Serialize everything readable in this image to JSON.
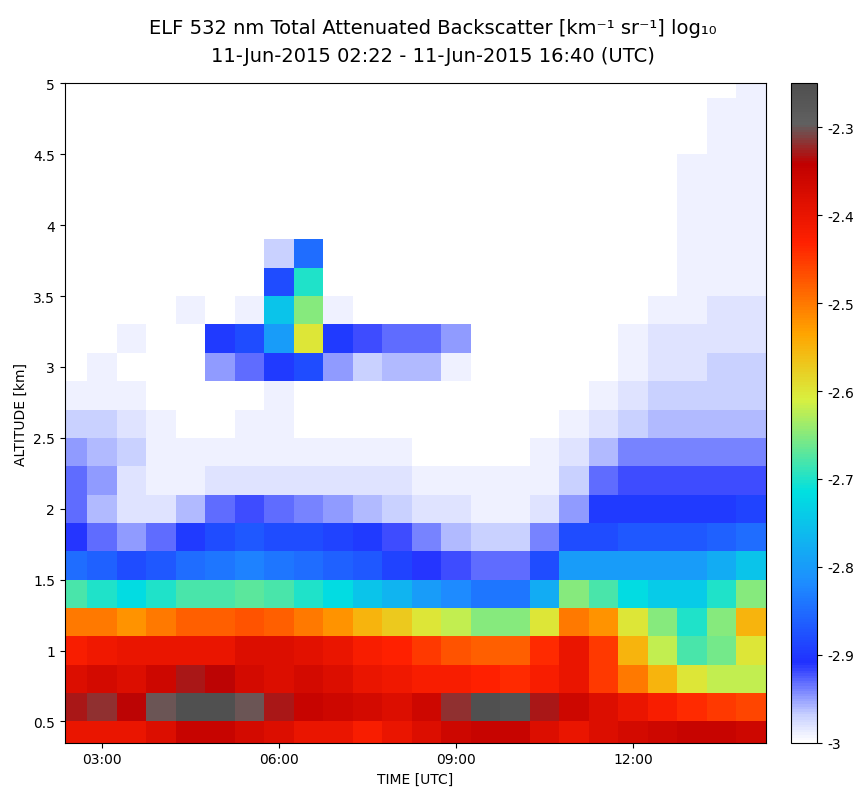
{
  "chart_data": {
    "type": "heatmap",
    "title": "ELF 532 nm Total Attenuated Backscatter [km⁻¹ sr⁻¹] log₁₀",
    "subtitle": "11-Jun-2015 02:22 - 11-Jun-2015 16:40 (UTC)",
    "x_label": "TIME [UTC]",
    "y_label": "ALTITUDE [km]",
    "xlim": [
      2.37,
      14.25
    ],
    "ylim": [
      0.35,
      5
    ],
    "xticks": [
      {
        "value": 3,
        "label": "03:00"
      },
      {
        "value": 6,
        "label": "06:00"
      },
      {
        "value": 9,
        "label": "09:00"
      },
      {
        "value": 12,
        "label": "12:00"
      }
    ],
    "yticks": [
      0.5,
      1,
      1.5,
      2,
      2.5,
      3,
      3.5,
      4,
      4.5,
      5
    ],
    "x": [
      2.5,
      3,
      3.5,
      4,
      4.5,
      5,
      5.5,
      6,
      6.5,
      7,
      7.5,
      8,
      8.5,
      9,
      9.5,
      10,
      10.5,
      11,
      11.5,
      12,
      12.5,
      13,
      13.5,
      14
    ],
    "y": [
      0.4,
      0.6,
      0.8,
      1.0,
      1.2,
      1.4,
      1.6,
      1.8,
      2.0,
      2.2,
      2.4,
      2.6,
      2.8,
      3.0,
      3.2,
      3.4,
      3.6,
      3.8,
      4.0,
      4.2,
      4.4,
      4.6,
      4.8,
      5.0
    ],
    "cells": [
      [
        -2.4,
        -2.4,
        -2.4,
        -2.38,
        -2.35,
        -2.35,
        -2.37,
        -2.38,
        -2.4,
        -2.4,
        -2.42,
        -2.4,
        -2.38,
        -2.36,
        -2.35,
        -2.35,
        -2.38,
        -2.4,
        -2.38,
        -2.37,
        -2.36,
        -2.35,
        -2.35,
        -2.36
      ],
      [
        -2.33,
        -2.32,
        -2.34,
        -2.3,
        -2.25,
        -2.25,
        -2.3,
        -2.33,
        -2.35,
        -2.36,
        -2.37,
        -2.38,
        -2.36,
        -2.32,
        -2.25,
        -2.26,
        -2.33,
        -2.36,
        -2.38,
        -2.4,
        -2.42,
        -2.44,
        -2.45,
        -2.46
      ],
      [
        -2.38,
        -2.37,
        -2.38,
        -2.36,
        -2.33,
        -2.34,
        -2.37,
        -2.38,
        -2.37,
        -2.38,
        -2.4,
        -2.41,
        -2.42,
        -2.42,
        -2.43,
        -2.44,
        -2.42,
        -2.4,
        -2.45,
        -2.5,
        -2.55,
        -2.6,
        -2.62,
        -2.62
      ],
      [
        -2.42,
        -2.41,
        -2.4,
        -2.4,
        -2.4,
        -2.4,
        -2.38,
        -2.38,
        -2.39,
        -2.4,
        -2.42,
        -2.43,
        -2.45,
        -2.47,
        -2.48,
        -2.48,
        -2.44,
        -2.4,
        -2.45,
        -2.55,
        -2.62,
        -2.68,
        -2.66,
        -2.6
      ],
      [
        -2.5,
        -2.5,
        -2.52,
        -2.5,
        -2.48,
        -2.48,
        -2.47,
        -2.48,
        -2.5,
        -2.52,
        -2.55,
        -2.57,
        -2.6,
        -2.62,
        -2.65,
        -2.65,
        -2.6,
        -2.5,
        -2.52,
        -2.6,
        -2.65,
        -2.7,
        -2.65,
        -2.55
      ],
      [
        -2.68,
        -2.7,
        -2.72,
        -2.7,
        -2.68,
        -2.68,
        -2.67,
        -2.68,
        -2.7,
        -2.72,
        -2.75,
        -2.77,
        -2.8,
        -2.82,
        -2.84,
        -2.84,
        -2.78,
        -2.65,
        -2.68,
        -2.72,
        -2.74,
        -2.74,
        -2.7,
        -2.65
      ],
      [
        -2.85,
        -2.86,
        -2.88,
        -2.87,
        -2.85,
        -2.84,
        -2.83,
        -2.84,
        -2.85,
        -2.86,
        -2.87,
        -2.89,
        -2.91,
        -2.92,
        -2.93,
        -2.93,
        -2.88,
        -2.8,
        -2.8,
        -2.8,
        -2.8,
        -2.8,
        -2.78,
        -2.75
      ],
      [
        -2.91,
        -2.93,
        -2.95,
        -2.93,
        -2.9,
        -2.88,
        -2.87,
        -2.88,
        -2.88,
        -2.89,
        -2.9,
        -2.92,
        -2.94,
        -2.96,
        -2.97,
        -2.97,
        -2.94,
        -2.88,
        -2.88,
        -2.87,
        -2.87,
        -2.87,
        -2.86,
        -2.85
      ],
      [
        -2.93,
        -2.96,
        -2.98,
        -2.98,
        -2.96,
        -2.93,
        -2.92,
        -2.93,
        -2.94,
        -2.95,
        -2.96,
        -2.97,
        -2.98,
        -2.98,
        -2.99,
        -2.99,
        -2.98,
        -2.95,
        -2.9,
        -2.9,
        -2.9,
        -2.9,
        -2.9,
        -2.89
      ],
      [
        -2.93,
        -2.95,
        -2.98,
        -2.99,
        -2.99,
        -2.98,
        -2.98,
        -2.98,
        -2.98,
        -2.98,
        -2.98,
        -2.98,
        -2.99,
        -2.99,
        -2.99,
        -2.99,
        -2.99,
        -2.97,
        -2.93,
        -2.92,
        -2.92,
        -2.92,
        -2.92,
        -2.92
      ],
      [
        -2.95,
        -2.96,
        -2.97,
        -2.99,
        -2.99,
        -2.99,
        -2.99,
        -2.99,
        -2.99,
        -2.99,
        -2.99,
        -2.99,
        -3,
        -3,
        -3,
        -3,
        -2.99,
        -2.98,
        -2.96,
        -2.94,
        -2.94,
        -2.94,
        -2.94,
        -2.94
      ],
      [
        -2.97,
        -2.97,
        -2.98,
        -2.99,
        -3,
        -3,
        -2.99,
        -2.99,
        -3,
        -3,
        -3,
        -3,
        -3,
        -3,
        -3,
        -3,
        -3,
        -2.99,
        -2.98,
        -2.97,
        -2.96,
        -2.96,
        -2.96,
        -2.96
      ],
      [
        -2.99,
        -2.99,
        -2.99,
        -3,
        -3,
        -3,
        -3,
        -2.99,
        -3,
        -3,
        -3,
        -3,
        -3,
        -3,
        -3,
        -3,
        -3,
        -3,
        -2.99,
        -2.98,
        -2.97,
        -2.97,
        -2.97,
        -2.97
      ],
      [
        -3,
        -2.99,
        -3,
        -3,
        -3,
        -2.95,
        -2.93,
        -2.9,
        -2.88,
        -2.95,
        -2.97,
        -2.96,
        -2.96,
        -2.99,
        -3,
        -3,
        -3,
        -3,
        -3,
        -2.99,
        -2.98,
        -2.98,
        -2.97,
        -2.97
      ],
      [
        -3,
        -3,
        -2.99,
        -3,
        -3,
        -2.9,
        -2.88,
        -2.8,
        -2.6,
        -2.9,
        -2.92,
        -2.93,
        -2.93,
        -2.95,
        -3,
        -3,
        -3,
        -3,
        -3,
        -2.99,
        -2.98,
        -2.98,
        -2.98,
        -2.98
      ],
      [
        -3,
        -3,
        -3,
        -3,
        -2.99,
        -3,
        -2.99,
        -2.75,
        -2.65,
        -2.99,
        -3,
        -3,
        -3,
        -3,
        -3,
        -3,
        -3,
        -3,
        -3,
        -3,
        -2.99,
        -2.99,
        -2.98,
        -2.98
      ],
      [
        -3,
        -3,
        -3,
        -3,
        -3,
        -3,
        -3,
        -2.88,
        -2.7,
        -3,
        -3,
        -3,
        -3,
        -3,
        -3,
        -3,
        -3,
        -3,
        -3,
        -3,
        -3,
        -2.99,
        -2.99,
        -2.99
      ],
      [
        -3,
        -3,
        -3,
        -3,
        -3,
        -3,
        -3,
        -2.97,
        -2.85,
        -3,
        -3,
        -3,
        -3,
        -3,
        -3,
        -3,
        -3,
        -3,
        -3,
        -3,
        -3,
        -2.99,
        -2.99,
        -2.99
      ],
      [
        -3,
        -3,
        -3,
        -3,
        -3,
        -3,
        -3,
        -3,
        -3,
        -3,
        -3,
        -3,
        -3,
        -3,
        -3,
        -3,
        -3,
        -3,
        -3,
        -3,
        -3,
        -2.99,
        -2.99,
        -2.99
      ],
      [
        -3,
        -3,
        -3,
        -3,
        -3,
        -3,
        -3,
        -3,
        -3,
        -3,
        -3,
        -3,
        -3,
        -3,
        -3,
        -3,
        -3,
        -3,
        -3,
        -3,
        -3,
        -2.99,
        -2.99,
        -2.99
      ],
      [
        -3,
        -3,
        -3,
        -3,
        -3,
        -3,
        -3,
        -3,
        -3,
        -3,
        -3,
        -3,
        -3,
        -3,
        -3,
        -3,
        -3,
        -3,
        -3,
        -3,
        -3,
        -2.99,
        -2.99,
        -2.99
      ],
      [
        -3,
        -3,
        -3,
        -3,
        -3,
        -3,
        -3,
        -3,
        -3,
        -3,
        -3,
        -3,
        -3,
        -3,
        -3,
        -3,
        -3,
        -3,
        -3,
        -3,
        -3,
        -3,
        -2.99,
        -2.99
      ],
      [
        -3,
        -3,
        -3,
        -3,
        -3,
        -3,
        -3,
        -3,
        -3,
        -3,
        -3,
        -3,
        -3,
        -3,
        -3,
        -3,
        -3,
        -3,
        -3,
        -3,
        -3,
        -3,
        -2.99,
        -2.99
      ],
      [
        -3,
        -3,
        -3,
        -3,
        -3,
        -3,
        -3,
        -3,
        -3,
        -3,
        -3,
        -3,
        -3,
        -3,
        -3,
        -3,
        -3,
        -3,
        -3,
        -3,
        -3,
        -3,
        -3,
        -2.99
      ]
    ],
    "colorbar_range": [
      -3,
      -2.25
    ],
    "colorbar_ticks": [
      -3,
      -2.9,
      -2.8,
      -2.7,
      -2.6,
      -2.5,
      -2.4,
      -2.3
    ]
  }
}
